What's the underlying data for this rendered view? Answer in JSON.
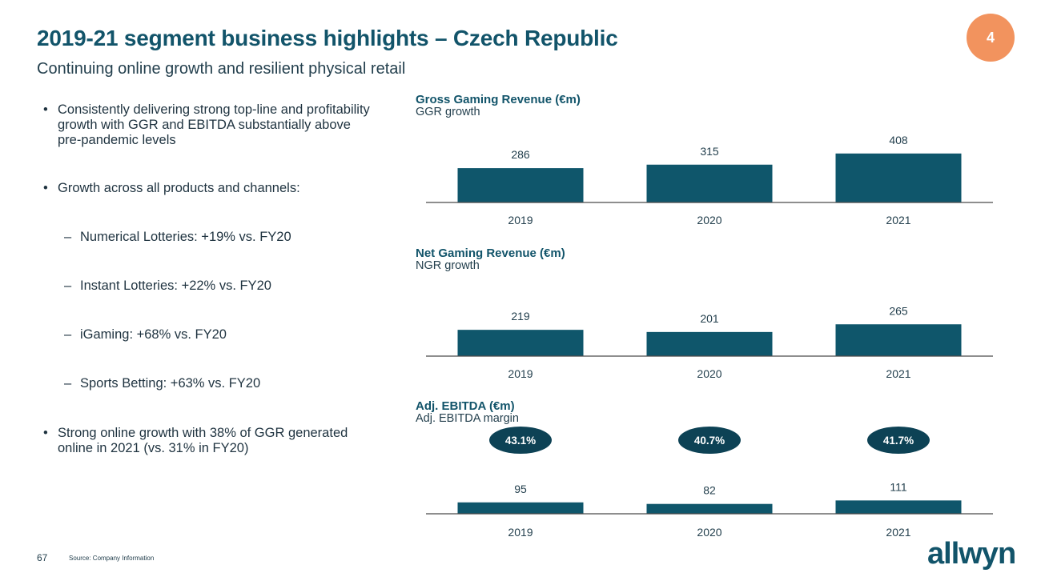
{
  "header": {
    "title": "2019-21 segment business highlights – Czech Republic",
    "subtitle": "Continuing online growth and resilient physical retail",
    "page_number": "4"
  },
  "bullets": {
    "b1": "Consistently delivering strong top-line and profitability growth with GGR and EBITDA substantially above pre-pandemic levels",
    "b2": "Growth across all products and channels:",
    "sub1": "Numerical Lotteries: +19% vs. FY20",
    "sub2": "Instant Lotteries: +22% vs. FY20",
    "sub3": "iGaming: +68% vs. FY20",
    "sub4": "Sports Betting: +63% vs. FY20",
    "b3": "Strong online growth with 38% of GGR generated online in 2021 (vs. 31% in FY20)"
  },
  "chart_labels": {
    "ggr_title": "Gross Gaming Revenue (€m)",
    "ggr_sub": "GGR growth",
    "ngr_title": "Net Gaming Revenue (€m)",
    "ngr_sub": "NGR growth",
    "ebitda_title": "Adj. EBITDA (€m)",
    "ebitda_sub": "Adj. EBITDA margin"
  },
  "colors": {
    "bar": "#0f566b",
    "axis": "#4a4a4a",
    "accent": "#f2935e",
    "title": "#12546a"
  },
  "chart_data": [
    {
      "type": "bar",
      "title": "Gross Gaming Revenue (€m)",
      "subtitle": "GGR growth",
      "categories": [
        "2019",
        "2020",
        "2021"
      ],
      "values": [
        286,
        315,
        408
      ],
      "value_labels": [
        "286",
        "315",
        "408"
      ]
    },
    {
      "type": "bar",
      "title": "Net Gaming Revenue (€m)",
      "subtitle": "NGR growth",
      "categories": [
        "2019",
        "2020",
        "2021"
      ],
      "values": [
        219,
        201,
        265
      ],
      "value_labels": [
        "219",
        "201",
        "265"
      ]
    },
    {
      "type": "bar",
      "title": "Adj. EBITDA (€m)",
      "subtitle": "Adj. EBITDA margin",
      "categories": [
        "2019",
        "2020",
        "2021"
      ],
      "values": [
        95,
        82,
        111
      ],
      "value_labels": [
        "95",
        "82",
        "111"
      ],
      "margins": [
        "43.1%",
        "40.7%",
        "41.7%"
      ]
    }
  ],
  "footer": {
    "page": "67",
    "source": "Source: Company Information",
    "logo": "allwyn"
  }
}
